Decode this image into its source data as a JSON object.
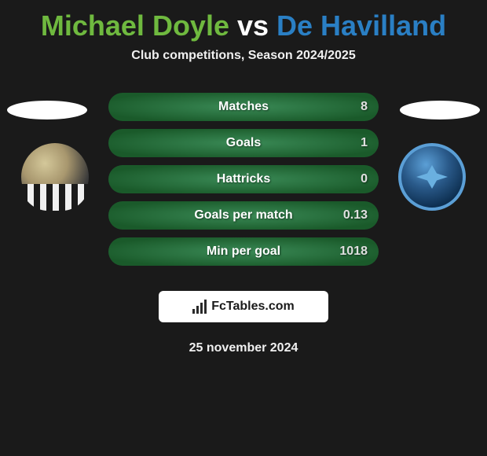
{
  "header": {
    "player1": "Michael Doyle",
    "vs": " vs ",
    "player2": "De Havilland",
    "subtitle": "Club competitions, Season 2024/2025"
  },
  "colors": {
    "player1": "#6fb93f",
    "player2": "#2a7fc4",
    "stat_bg_inner": "#3a8a56",
    "stat_bg_outer": "#1a5a2a",
    "stat_text": "#ffffff",
    "value_text": "#e0e0e0"
  },
  "stats": [
    {
      "label": "Matches",
      "value_right": "8"
    },
    {
      "label": "Goals",
      "value_right": "1"
    },
    {
      "label": "Hattricks",
      "value_right": "0"
    },
    {
      "label": "Goals per match",
      "value_right": "0.13"
    },
    {
      "label": "Min per goal",
      "value_right": "1018"
    }
  ],
  "footer": {
    "brand": "FcTables.com",
    "date": "25 november 2024"
  }
}
